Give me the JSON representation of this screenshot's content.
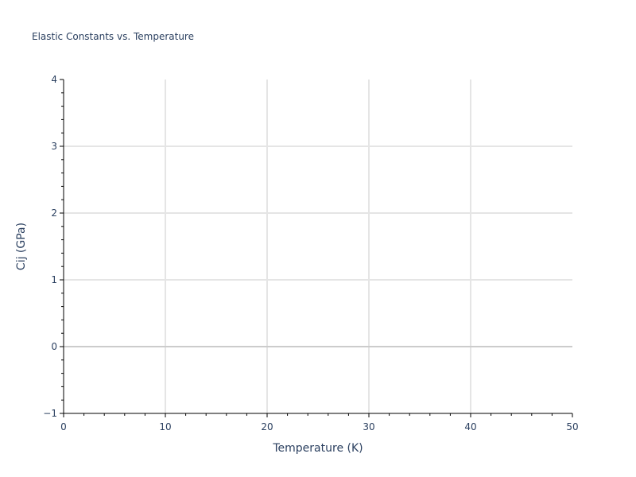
{
  "chart_data": {
    "type": "line",
    "title": "Elastic Constants vs. Temperature",
    "xlabel": "Temperature (K)",
    "ylabel": "Cij (GPa)",
    "xlim": [
      0,
      50
    ],
    "ylim": [
      -1,
      4
    ],
    "x_ticks": [
      "0",
      "10",
      "20",
      "30",
      "40",
      "50"
    ],
    "y_ticks": [
      "−1",
      "0",
      "1",
      "2",
      "3",
      "4"
    ],
    "x_minor_step": 2,
    "y_minor_step": 0.2,
    "grid": true,
    "series": [],
    "colors": {
      "text": "#2a3f5f",
      "grid": "#e5e5e5",
      "zeroline": "#cccccc",
      "axis": "#000000"
    }
  }
}
